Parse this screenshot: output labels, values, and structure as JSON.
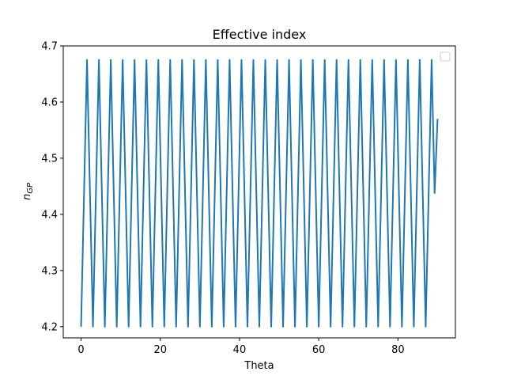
{
  "chart_data": {
    "type": "line",
    "title": "Effective index",
    "xlabel": "Theta",
    "ylabel_base": "n",
    "ylabel_sub": "GP",
    "xlim": [
      -4.5,
      94.5
    ],
    "ylim": [
      4.18,
      4.7
    ],
    "x_ticks": [
      0,
      20,
      40,
      60,
      80
    ],
    "x_tick_labels": [
      "0",
      "20",
      "40",
      "60",
      "80"
    ],
    "y_ticks": [
      4.2,
      4.3,
      4.4,
      4.5,
      4.6,
      4.7
    ],
    "y_tick_labels": [
      "4.2",
      "4.3",
      "4.4",
      "4.5",
      "4.6",
      "4.7"
    ],
    "grid": false,
    "legend": {
      "placement": "top-right",
      "entries": []
    },
    "series": [
      {
        "color": "#1f77b4",
        "x": [
          0.0,
          0.75,
          1.5,
          2.25,
          3.0,
          3.75,
          4.5,
          5.25,
          6.0,
          6.75,
          7.5,
          8.25,
          9.0,
          9.75,
          10.5,
          11.25,
          12.0,
          12.75,
          13.5,
          14.25,
          15.0,
          15.75,
          16.5,
          17.25,
          18.0,
          18.75,
          19.5,
          20.25,
          21.0,
          21.75,
          22.5,
          23.25,
          24.0,
          24.75,
          25.5,
          26.25,
          27.0,
          27.75,
          28.5,
          29.25,
          30.0,
          30.75,
          31.5,
          32.25,
          33.0,
          33.75,
          34.5,
          35.25,
          36.0,
          36.75,
          37.5,
          38.25,
          39.0,
          39.75,
          40.5,
          41.25,
          42.0,
          42.75,
          43.5,
          44.25,
          45.0,
          45.75,
          46.5,
          47.25,
          48.0,
          48.75,
          49.5,
          50.25,
          51.0,
          51.75,
          52.5,
          53.25,
          54.0,
          54.75,
          55.5,
          56.25,
          57.0,
          57.75,
          58.5,
          59.25,
          60.0,
          60.75,
          61.5,
          62.25,
          63.0,
          63.75,
          64.5,
          65.25,
          66.0,
          66.75,
          67.5,
          68.25,
          69.0,
          69.75,
          70.5,
          71.25,
          72.0,
          72.75,
          73.5,
          74.25,
          75.0,
          75.75,
          76.5,
          77.25,
          78.0,
          78.75,
          79.5,
          80.25,
          81.0,
          81.75,
          82.5,
          83.25,
          84.0,
          84.75,
          85.5,
          86.25,
          87.0,
          87.75,
          88.5,
          89.25,
          90.0
        ],
        "y": [
          4.2,
          4.438,
          4.675,
          4.438,
          4.2,
          4.438,
          4.675,
          4.438,
          4.2,
          4.438,
          4.675,
          4.438,
          4.2,
          4.438,
          4.675,
          4.438,
          4.2,
          4.438,
          4.675,
          4.438,
          4.2,
          4.438,
          4.675,
          4.438,
          4.2,
          4.438,
          4.675,
          4.438,
          4.2,
          4.438,
          4.675,
          4.438,
          4.2,
          4.438,
          4.675,
          4.438,
          4.2,
          4.438,
          4.675,
          4.438,
          4.2,
          4.438,
          4.675,
          4.438,
          4.2,
          4.438,
          4.675,
          4.438,
          4.2,
          4.438,
          4.675,
          4.438,
          4.2,
          4.438,
          4.675,
          4.438,
          4.2,
          4.438,
          4.675,
          4.438,
          4.2,
          4.438,
          4.675,
          4.438,
          4.2,
          4.438,
          4.675,
          4.438,
          4.2,
          4.438,
          4.675,
          4.438,
          4.2,
          4.438,
          4.675,
          4.438,
          4.2,
          4.438,
          4.675,
          4.438,
          4.2,
          4.438,
          4.675,
          4.438,
          4.2,
          4.438,
          4.675,
          4.438,
          4.2,
          4.438,
          4.675,
          4.438,
          4.2,
          4.438,
          4.675,
          4.438,
          4.2,
          4.438,
          4.675,
          4.438,
          4.2,
          4.438,
          4.675,
          4.438,
          4.2,
          4.438,
          4.675,
          4.438,
          4.2,
          4.438,
          4.675,
          4.438,
          4.2,
          4.438,
          4.675,
          4.438,
          4.2,
          4.438,
          4.675,
          4.438,
          4.57
        ]
      }
    ]
  }
}
